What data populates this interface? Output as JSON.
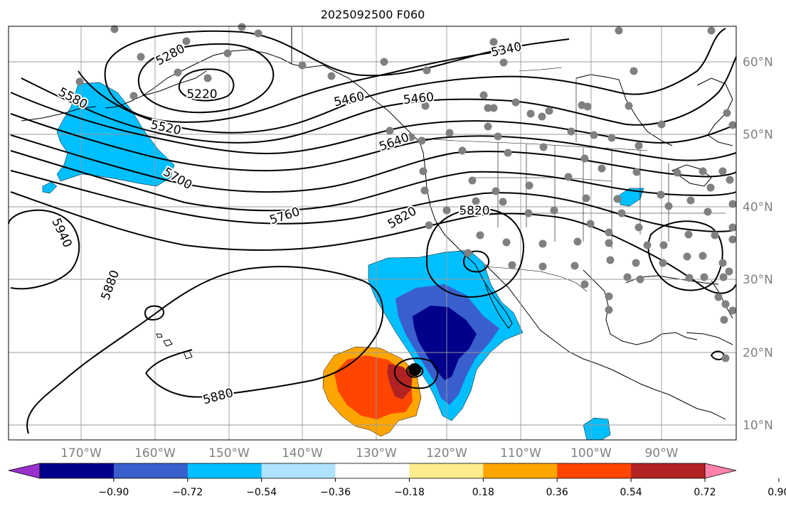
{
  "title": "2025092500 F060",
  "lat_labels": [
    "60°N",
    "50°N",
    "40°N",
    "30°N",
    "20°N",
    "10°N"
  ],
  "lon_labels": [
    "170°W",
    "160°W",
    "150°W",
    "140°W",
    "130°W",
    "120°W",
    "110°W",
    "100°W",
    "90°W"
  ],
  "contour_labels": [
    "5280",
    "5220",
    "5340",
    "5580",
    "5460",
    "5460",
    "5520",
    "5640",
    "5700",
    "5760",
    "5820",
    "5820",
    "5940",
    "5880",
    "5880"
  ],
  "colorbar": {
    "tick_labels": [
      "−0.90",
      "−0.72",
      "−0.54",
      "−0.36",
      "−0.18",
      "0.18",
      "0.36",
      "0.54",
      "0.72",
      "0.90"
    ],
    "colors": [
      "#9932cc",
      "#00008b",
      "#3a5fcd",
      "#00bfff",
      "#b0e2ff",
      "#ffffff",
      "#ffec8b",
      "#ffa500",
      "#ff4500",
      "#b22222",
      "#ff82ab"
    ]
  },
  "colors": {
    "land_outline": "#000000",
    "gridline": "#9a9a9a",
    "station_dot": "#808080"
  }
}
